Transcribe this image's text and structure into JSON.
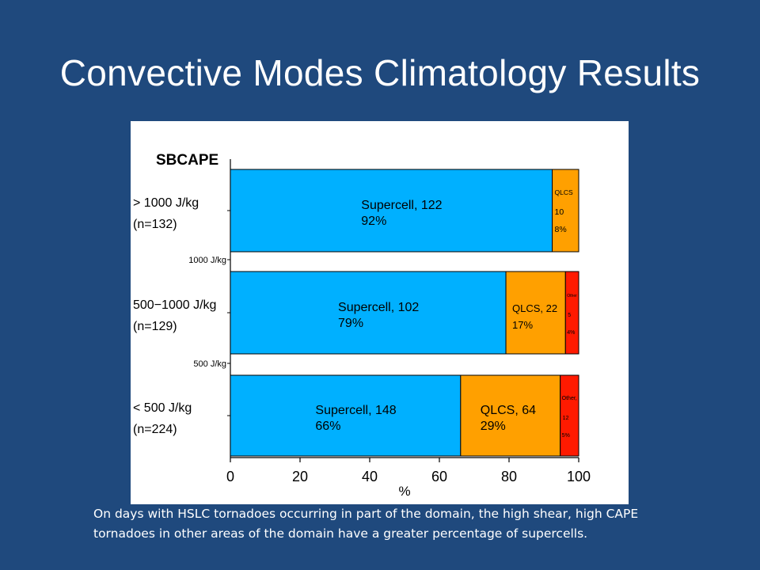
{
  "slide": {
    "title": "Convective Modes Climatology Results",
    "caption": "On days with HSLC tornadoes occurring in part of the domain, the high shear, high CAPE tornadoes in other areas of the domain have a greater percentage of supercells."
  },
  "chart_data": {
    "type": "bar",
    "orientation": "horizontal",
    "stacked": true,
    "title": "SBCAPE",
    "xlabel": "%",
    "xlim": [
      0,
      100
    ],
    "x_ticks": [
      0,
      20,
      40,
      60,
      80,
      100
    ],
    "categories": [
      {
        "label": "> 1000 J/kg",
        "n_label": "(n=132)"
      },
      {
        "label": "500−1000 J/kg",
        "n_label": "(n=129)"
      },
      {
        "label": "< 500 J/kg",
        "n_label": "(n=224)"
      }
    ],
    "separator_labels": [
      "1000 J/kg",
      "500 J/kg"
    ],
    "colors": {
      "Supercell": "#00b0ff",
      "QLCS": "#ffa000",
      "Other": "#ff1a00"
    },
    "series": [
      {
        "key": "Supercell",
        "values": [
          92.4,
          79.1,
          66.1
        ]
      },
      {
        "key": "QLCS",
        "values": [
          7.6,
          17.1,
          28.6
        ]
      },
      {
        "key": "Other",
        "values": [
          0,
          3.8,
          5.3
        ]
      }
    ],
    "segment_labels": [
      [
        {
          "lines": [
            "Supercell, 122",
            "92%"
          ],
          "size": "large"
        },
        {
          "lines": [
            "QLCS",
            "10",
            "8%"
          ],
          "size": "small"
        }
      ],
      [
        {
          "lines": [
            "Supercell, 102",
            "79%"
          ],
          "size": "large"
        },
        {
          "lines": [
            "QLCS, 22",
            "17%"
          ],
          "size": "medium"
        },
        {
          "lines": [
            "Other",
            "5",
            "4%"
          ],
          "size": "tiny"
        }
      ],
      [
        {
          "lines": [
            "Supercell, 148",
            "66%"
          ],
          "size": "large"
        },
        {
          "lines": [
            "QLCS, 64",
            "29%"
          ],
          "size": "large"
        },
        {
          "lines": [
            "Other,",
            "12",
            "5%"
          ],
          "size": "tiny"
        }
      ]
    ]
  }
}
